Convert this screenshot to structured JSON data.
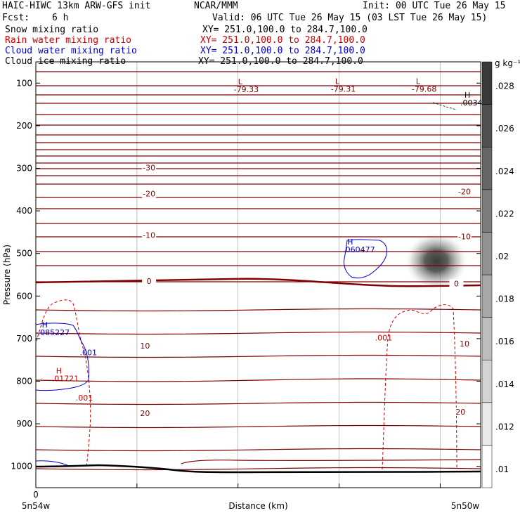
{
  "header": {
    "model": "HAIC-HIWC 13km ARW-GFS init",
    "org": "NCAR/MMM",
    "init": "Init: 00 UTC Tue 26 May 15",
    "fcst_label": "Fcst:",
    "fcst_value": "6 h",
    "valid": "Valid: 06 UTC Tue 26 May 15 (03 LST Tue 26 May 15)",
    "fields": [
      {
        "name": "Snow mixing ratio",
        "xy": "XY= 251.0,100.0 to 284.7,100.0",
        "color": "#000000"
      },
      {
        "name": "Rain water mixing ratio",
        "xy": "XY= 251.0,100.0 to 284.7,100.0",
        "color": "#cc0000"
      },
      {
        "name": "Cloud water mixing ratio",
        "xy": "XY= 251.0,100.0 to 284.7,100.0",
        "color": "#0000cc"
      },
      {
        "name": "Cloud ice mixing ratio",
        "xy": "XY= 251.0,100.0 to 284.7,100.0",
        "color": "#000000"
      }
    ]
  },
  "chart_data": {
    "type": "cross-section",
    "ylabel": "Pressure (hPa)",
    "xlabel": "Distance (km)",
    "y_ticks": [
      100,
      200,
      300,
      400,
      500,
      600,
      700,
      800,
      900,
      1000
    ],
    "ylim": [
      1050,
      50
    ],
    "xlim": [
      0,
      11
    ],
    "x_ticks": [
      0,
      2.5,
      5,
      7.5,
      10
    ],
    "x_tick_labels": [
      "0"
    ],
    "x_end_labels": {
      "left": "5n54w",
      "right": "5n50w"
    },
    "colorbar": {
      "units": "g kg⁻¹",
      "levels": [
        0.01,
        0.012,
        0.014,
        0.016,
        0.018,
        0.02,
        0.022,
        0.024,
        0.026,
        0.028
      ],
      "labels": [
        ".01",
        ".012",
        ".014",
        ".016",
        ".018",
        ".02",
        ".022",
        ".024",
        ".026",
        ".028"
      ],
      "ramp": [
        "#ffffff",
        "#3a3a3a"
      ]
    },
    "temperature_contours": {
      "color": "#800000",
      "zero_color": "#800000",
      "labels": [
        {
          "text": "-30",
          "x": 2.8,
          "p": 302
        },
        {
          "text": "-20",
          "x": 2.8,
          "p": 363
        },
        {
          "text": "-20",
          "x": 10.6,
          "p": 358
        },
        {
          "text": "-10",
          "x": 2.8,
          "p": 460
        },
        {
          "text": "-10",
          "x": 10.6,
          "p": 463
        },
        {
          "text": "0",
          "x": 2.8,
          "p": 568
        },
        {
          "text": "0",
          "x": 10.4,
          "p": 574
        },
        {
          "text": "10",
          "x": 2.7,
          "p": 720
        },
        {
          "text": "10",
          "x": 10.6,
          "p": 715
        },
        {
          "text": "20",
          "x": 2.7,
          "p": 878
        },
        {
          "text": "20",
          "x": 10.5,
          "p": 875
        }
      ]
    },
    "extrema": [
      {
        "symbol": "L",
        "value": "-79.33",
        "x": 5.0,
        "p": 121,
        "color": "#800000"
      },
      {
        "symbol": "L",
        "value": "-79.31",
        "x": 7.4,
        "p": 120,
        "color": "#800000"
      },
      {
        "symbol": "L",
        "value": "-79.68",
        "x": 9.4,
        "p": 120,
        "color": "#800000"
      },
      {
        "symbol": "H",
        "value": ".0034",
        "x": 10.6,
        "p": 152,
        "color": "#000000"
      },
      {
        "symbol": "H",
        "value": ".060477",
        "x": 7.7,
        "p": 497,
        "color": "#0000cc"
      },
      {
        "symbol": "H",
        "value": ".085227",
        "x": 0.15,
        "p": 692,
        "color": "#0000cc"
      },
      {
        "symbol": "H",
        "value": ".01721",
        "x": 0.5,
        "p": 800,
        "color": "#cc0000"
      }
    ],
    "rain_labels": [
      {
        "text": ".001",
        "x": 1.2,
        "p": 845
      },
      {
        "text": ".001",
        "x": 8.6,
        "p": 704
      }
    ],
    "cloud_labels": [
      {
        "text": ".001",
        "x": 1.3,
        "p": 739
      }
    ],
    "snow_max": {
      "x": 9.9,
      "p": 518,
      "value": 0.028
    }
  }
}
